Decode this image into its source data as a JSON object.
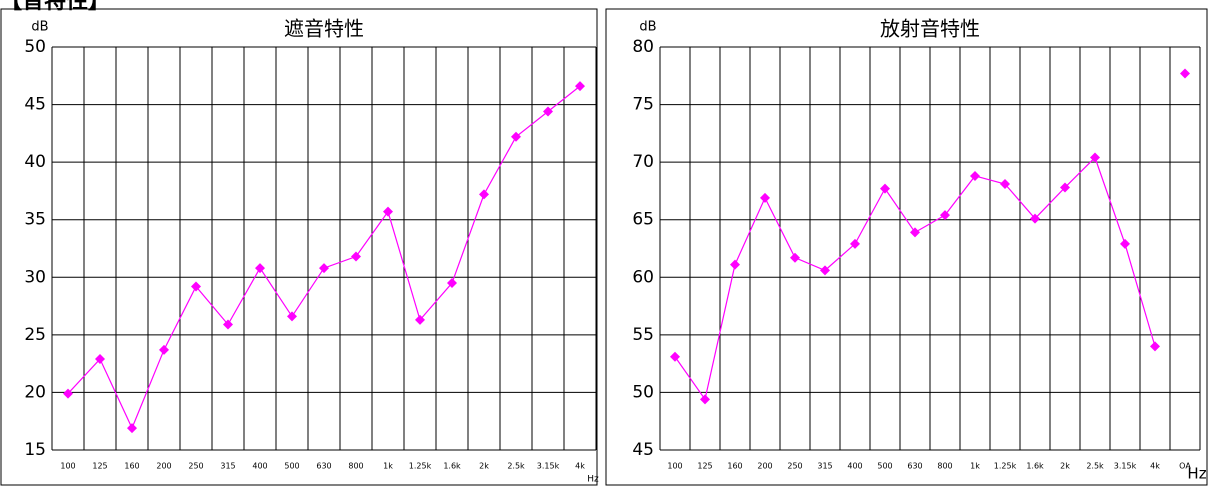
{
  "heading": "【音特性】",
  "chart_data": [
    {
      "type": "line",
      "title": "遮音特性",
      "y_unit": "dB",
      "x_unit": "Hz",
      "categories": [
        "100",
        "125",
        "160",
        "200",
        "250",
        "315",
        "400",
        "500",
        "630",
        "800",
        "1k",
        "1.25k",
        "1.6k",
        "2k",
        "2.5k",
        "3.15k",
        "4k"
      ],
      "series": [
        {
          "color": "#ff00ff",
          "values": [
            19.9,
            22.9,
            16.9,
            23.7,
            29.2,
            25.9,
            30.8,
            26.6,
            30.8,
            31.8,
            35.7,
            26.3,
            29.5,
            37.2,
            42.2,
            44.4,
            46.6
          ]
        }
      ],
      "ylim": [
        15,
        50
      ],
      "yticks": [
        15,
        20,
        25,
        30,
        35,
        40,
        45,
        50
      ],
      "grid": true
    },
    {
      "type": "line",
      "title": "放射音特性",
      "y_unit": "dB",
      "x_unit": "Hz",
      "categories": [
        "100",
        "125",
        "160",
        "200",
        "250",
        "315",
        "400",
        "500",
        "630",
        "800",
        "1k",
        "1.25k",
        "1.6k",
        "2k",
        "2.5k",
        "3.15k",
        "4k",
        "OA"
      ],
      "series": [
        {
          "color": "#ff00ff",
          "values": [
            53.1,
            49.4,
            61.1,
            66.9,
            61.7,
            60.6,
            62.9,
            67.7,
            63.9,
            65.4,
            68.8,
            68.1,
            65.1,
            67.8,
            70.4,
            62.9,
            54.0,
            null
          ]
        },
        {
          "color": "#ff00ff",
          "values": [
            null,
            null,
            null,
            null,
            null,
            null,
            null,
            null,
            null,
            null,
            null,
            null,
            null,
            null,
            null,
            null,
            null,
            77.7
          ]
        }
      ],
      "ylim": [
        45,
        80
      ],
      "yticks": [
        45,
        50,
        55,
        60,
        65,
        70,
        75,
        80
      ],
      "grid": true
    }
  ]
}
